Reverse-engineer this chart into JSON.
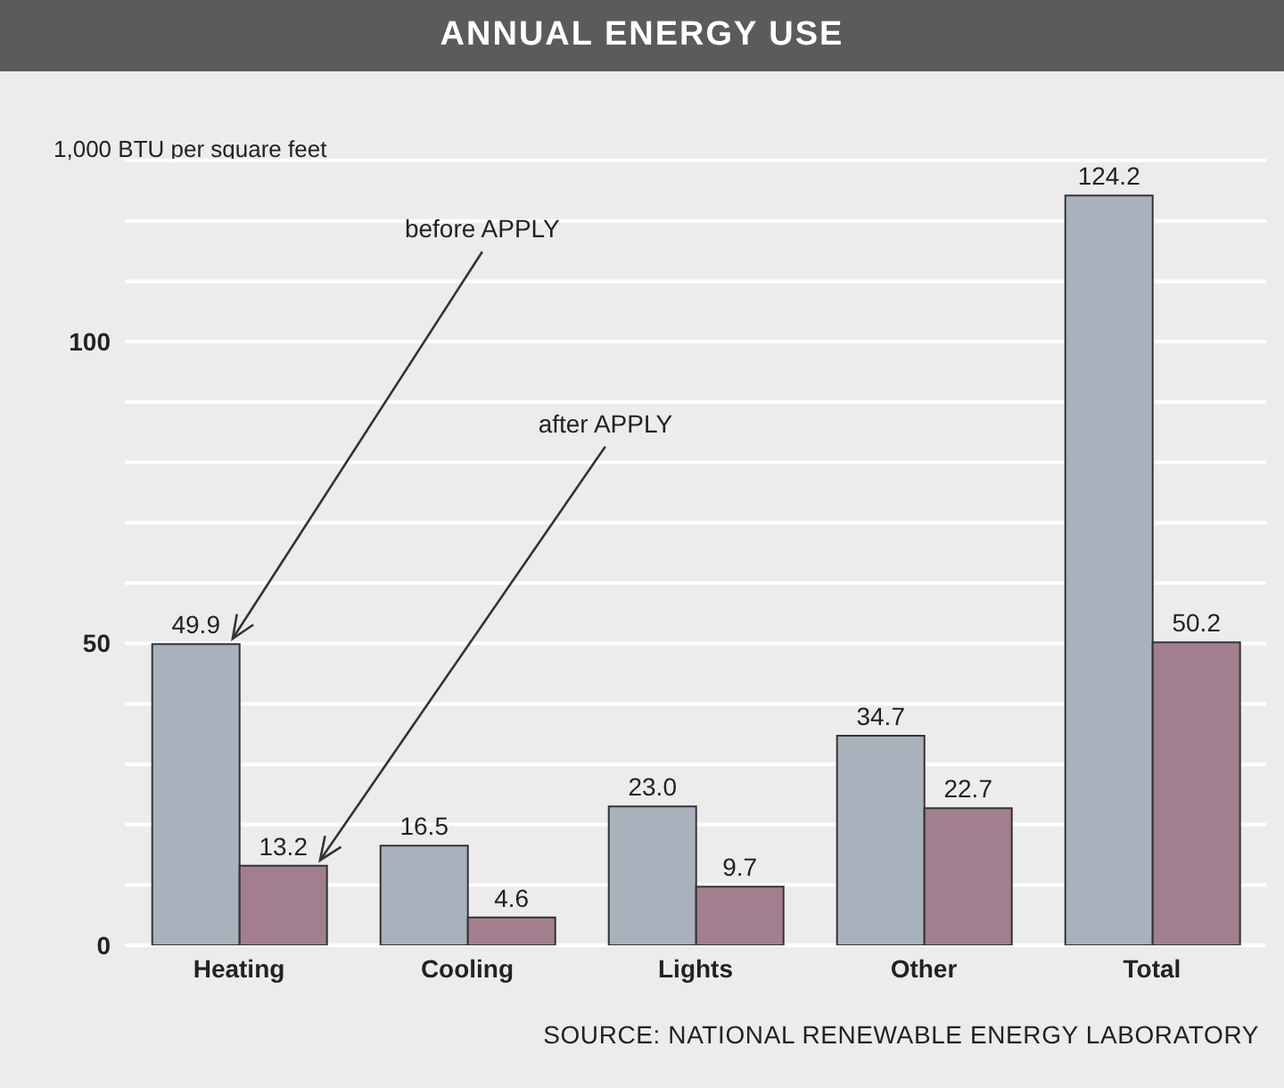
{
  "chart_data": {
    "type": "bar",
    "title": "ANNUAL ENERGY USE",
    "ylabel": "1,000 BTU per square feet",
    "categories": [
      "Heating",
      "Cooling",
      "Lights",
      "Other",
      "Total"
    ],
    "series": [
      {
        "name": "before APPLY",
        "color": "#a9b2bc",
        "values": [
          49.9,
          16.5,
          23.0,
          34.7,
          124.2
        ]
      },
      {
        "name": "after APPLY",
        "color": "#a27f8f",
        "values": [
          13.2,
          4.6,
          9.7,
          22.7,
          50.2
        ]
      }
    ],
    "value_labels": [
      [
        "49.9",
        "16.5",
        "23.0",
        "34.7",
        "124.2"
      ],
      [
        "13.2",
        "4.6",
        "9.7",
        "22.7",
        "50.2"
      ]
    ],
    "ylim": [
      0,
      130
    ],
    "yticks": [
      0,
      {
        "value": 10,
        "label": null
      },
      {
        "value": 20,
        "label": null
      },
      {
        "value": 30,
        "label": null
      },
      {
        "value": 40,
        "label": null
      },
      50,
      {
        "value": 60,
        "label": null
      },
      {
        "value": 70,
        "label": null
      },
      {
        "value": 80,
        "label": null
      },
      {
        "value": 90,
        "label": null
      },
      100,
      {
        "value": 110,
        "label": null
      },
      {
        "value": 120,
        "label": null
      }
    ],
    "grid": "y",
    "legend": false,
    "annotations": [
      "SOURCE: NATIONAL RENEWABLE ENERGY LABORATORY"
    ]
  }
}
